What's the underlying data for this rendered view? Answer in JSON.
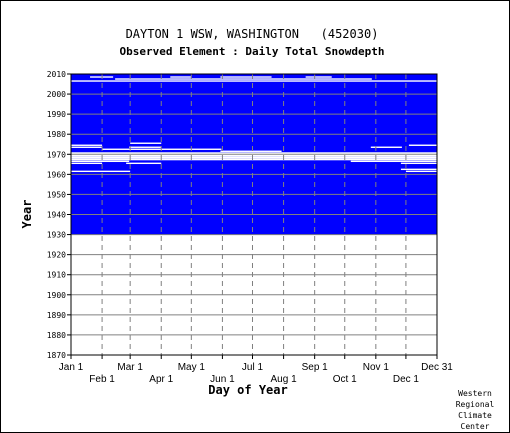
{
  "chart_data": {
    "type": "heatmap",
    "title": "DAYTON 1 WSW, WASHINGTON   (452030)",
    "subtitle": "Observed Element : Daily Total Snowdepth",
    "xlabel": "Day of Year",
    "ylabel": "Year",
    "xlim": [
      1,
      365
    ],
    "ylim": [
      1870,
      2010
    ],
    "x_ticks_top_row": [
      "Jan 1",
      "Mar 1",
      "May 1",
      "Jul 1",
      "Sep 1",
      "Nov 1",
      "Dec 31"
    ],
    "x_ticks_bottom_row": [
      "Feb 1",
      "Apr 1",
      "Jun 1",
      "Aug 1",
      "Oct 1",
      "Dec 1"
    ],
    "y_ticks": [
      2010,
      2000,
      1990,
      1980,
      1970,
      1960,
      1950,
      1940,
      1930,
      1920,
      1910,
      1900,
      1890,
      1880,
      1870
    ],
    "grid": true,
    "colors": {
      "observed": "#0000ff",
      "grid": "#808080",
      "background": "#ffffff",
      "axis": "#000000"
    },
    "data_years_range": [
      1930,
      2009
    ],
    "missing_full_years": [
      1967,
      1968,
      1969,
      1970
    ],
    "missing_partial": [
      {
        "year": 1965,
        "start_day": 1,
        "end_day": 31
      },
      {
        "year": 1965,
        "start_day": 56,
        "end_day": 90
      },
      {
        "year": 1965,
        "start_day": 330,
        "end_day": 365
      },
      {
        "year": 1966,
        "start_day": 1,
        "end_day": 58
      },
      {
        "year": 1966,
        "start_day": 280,
        "end_day": 365
      },
      {
        "year": 1971,
        "start_day": 150,
        "end_day": 210
      },
      {
        "year": 1972,
        "start_day": 32,
        "end_day": 59
      },
      {
        "year": 1972,
        "start_day": 60,
        "end_day": 150
      },
      {
        "year": 1973,
        "start_day": 1,
        "end_day": 31
      },
      {
        "year": 1973,
        "start_day": 59,
        "end_day": 90
      },
      {
        "year": 1973,
        "start_day": 300,
        "end_day": 330
      },
      {
        "year": 1974,
        "start_day": 1,
        "end_day": 31
      },
      {
        "year": 1974,
        "start_day": 338,
        "end_day": 365
      },
      {
        "year": 1975,
        "start_day": 60,
        "end_day": 90
      },
      {
        "year": 1961,
        "start_day": 1,
        "end_day": 59
      },
      {
        "year": 1961,
        "start_day": 335,
        "end_day": 365
      },
      {
        "year": 1962,
        "start_day": 330,
        "end_day": 365
      },
      {
        "year": 2006,
        "start_day": 1,
        "end_day": 365
      },
      {
        "year": 2007,
        "start_day": 45,
        "end_day": 300
      },
      {
        "year": 2008,
        "start_day": 20,
        "end_day": 42
      },
      {
        "year": 2008,
        "start_day": 100,
        "end_day": 120
      },
      {
        "year": 2008,
        "start_day": 150,
        "end_day": 200
      },
      {
        "year": 2008,
        "start_day": 235,
        "end_day": 260
      }
    ]
  },
  "credit_lines": [
    "Western",
    "Regional",
    "Climate",
    "Center"
  ]
}
